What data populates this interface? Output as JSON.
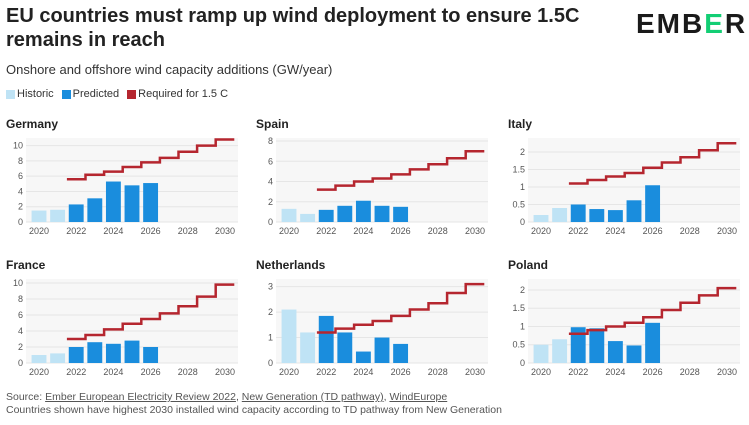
{
  "header": {
    "title": "EU countries must ramp up wind deployment to ensure 1.5C remains in reach",
    "subtitle": "Onshore and offshore wind capacity additions (GW/year)",
    "logo_text": "EMBER"
  },
  "legend": {
    "historic": "Historic",
    "predicted": "Predicted",
    "required": "Required for 1.5 C"
  },
  "colors": {
    "historic": "#bfe3f5",
    "predicted": "#1a8ddd",
    "required": "#b5262f",
    "grid": "#e6e6e6",
    "panel_bg": "#f7f7f7",
    "logo_accent": "#13ce74"
  },
  "chart_data": [
    {
      "type": "bar",
      "title": "Germany",
      "years": [
        2020,
        2021,
        2022,
        2023,
        2024,
        2025,
        2026
      ],
      "values": [
        1.5,
        1.6,
        2.3,
        3.1,
        5.3,
        4.8,
        5.1
      ],
      "status": [
        "historic",
        "historic",
        "predicted",
        "predicted",
        "predicted",
        "predicted",
        "predicted"
      ],
      "required": {
        "x": [
          2022,
          2023,
          2024,
          2025,
          2026,
          2027,
          2028,
          2029,
          2030
        ],
        "y": [
          5.6,
          6.2,
          6.6,
          7.2,
          7.8,
          8.4,
          9.2,
          10.0,
          10.8
        ]
      },
      "yticks": [
        0,
        2,
        4,
        6,
        8,
        10
      ],
      "ylim": [
        0,
        11
      ],
      "xticks": [
        2020,
        2022,
        2024,
        2026,
        2028,
        2030
      ]
    },
    {
      "type": "bar",
      "title": "Spain",
      "years": [
        2020,
        2021,
        2022,
        2023,
        2024,
        2025,
        2026
      ],
      "values": [
        1.3,
        0.8,
        1.2,
        1.6,
        2.1,
        1.6,
        1.5
      ],
      "status": [
        "historic",
        "historic",
        "predicted",
        "predicted",
        "predicted",
        "predicted",
        "predicted"
      ],
      "required": {
        "x": [
          2022,
          2023,
          2024,
          2025,
          2026,
          2027,
          2028,
          2029,
          2030
        ],
        "y": [
          3.2,
          3.6,
          4.0,
          4.3,
          4.7,
          5.2,
          5.7,
          6.3,
          7.0
        ]
      },
      "yticks": [
        0,
        2,
        4,
        6,
        8
      ],
      "ylim": [
        0,
        8.3
      ],
      "xticks": [
        2020,
        2022,
        2024,
        2026,
        2028,
        2030
      ]
    },
    {
      "type": "bar",
      "title": "Italy",
      "years": [
        2020,
        2021,
        2022,
        2023,
        2024,
        2025,
        2026
      ],
      "values": [
        0.2,
        0.4,
        0.5,
        0.37,
        0.34,
        0.62,
        1.05
      ],
      "status": [
        "historic",
        "historic",
        "predicted",
        "predicted",
        "predicted",
        "predicted",
        "predicted"
      ],
      "required": {
        "x": [
          2022,
          2023,
          2024,
          2025,
          2026,
          2027,
          2028,
          2029,
          2030
        ],
        "y": [
          1.1,
          1.2,
          1.3,
          1.4,
          1.55,
          1.7,
          1.85,
          2.05,
          2.25
        ]
      },
      "yticks": [
        0,
        0.5,
        1,
        1.5,
        2
      ],
      "ylim": [
        0,
        2.4
      ],
      "xticks": [
        2020,
        2022,
        2024,
        2026,
        2028,
        2030
      ]
    },
    {
      "type": "bar",
      "title": "France",
      "years": [
        2020,
        2021,
        2022,
        2023,
        2024,
        2025,
        2026
      ],
      "values": [
        1.0,
        1.2,
        2.0,
        2.6,
        2.4,
        2.8,
        2.0
      ],
      "status": [
        "historic",
        "historic",
        "predicted",
        "predicted",
        "predicted",
        "predicted",
        "predicted"
      ],
      "required": {
        "x": [
          2022,
          2023,
          2024,
          2025,
          2026,
          2027,
          2028,
          2029,
          2030
        ],
        "y": [
          3.0,
          3.5,
          4.2,
          4.9,
          5.5,
          6.2,
          7.1,
          8.3,
          9.8
        ]
      },
      "yticks": [
        0,
        2,
        4,
        6,
        8,
        10
      ],
      "ylim": [
        0,
        10.5
      ],
      "xticks": [
        2020,
        2022,
        2024,
        2026,
        2028,
        2030
      ]
    },
    {
      "type": "bar",
      "title": "Netherlands",
      "years": [
        2020,
        2021,
        2022,
        2023,
        2024,
        2025,
        2026
      ],
      "values": [
        2.1,
        1.2,
        1.85,
        1.2,
        0.45,
        1.0,
        0.75
      ],
      "status": [
        "historic",
        "historic",
        "predicted",
        "predicted",
        "predicted",
        "predicted",
        "predicted"
      ],
      "required": {
        "x": [
          2022,
          2023,
          2024,
          2025,
          2026,
          2027,
          2028,
          2029,
          2030
        ],
        "y": [
          1.2,
          1.35,
          1.5,
          1.65,
          1.85,
          2.1,
          2.35,
          2.75,
          3.1
        ]
      },
      "yticks": [
        0,
        1,
        2,
        3
      ],
      "ylim": [
        0,
        3.3
      ],
      "xticks": [
        2020,
        2022,
        2024,
        2026,
        2028,
        2030
      ]
    },
    {
      "type": "bar",
      "title": "Poland",
      "years": [
        2020,
        2021,
        2022,
        2023,
        2024,
        2025,
        2026
      ],
      "values": [
        0.5,
        0.65,
        0.98,
        0.95,
        0.6,
        0.48,
        1.1
      ],
      "status": [
        "historic",
        "historic",
        "predicted",
        "predicted",
        "predicted",
        "predicted",
        "predicted"
      ],
      "required": {
        "x": [
          2022,
          2023,
          2024,
          2025,
          2026,
          2027,
          2028,
          2029,
          2030
        ],
        "y": [
          0.8,
          0.9,
          1.0,
          1.1,
          1.25,
          1.45,
          1.65,
          1.85,
          2.05
        ]
      },
      "yticks": [
        0,
        0.5,
        1,
        1.5,
        2
      ],
      "ylim": [
        0,
        2.3
      ],
      "xticks": [
        2020,
        2022,
        2024,
        2026,
        2028,
        2030
      ]
    }
  ],
  "footer": {
    "source_prefix": "Source: ",
    "source_1": "Ember European Electricity Review 2022",
    "sep_1": ", ",
    "source_2": "New Generation (TD pathway)",
    "sep_2": ", ",
    "source_3": "WindEurope",
    "note": "Countries shown have highest 2030 installed wind capacity according to TD pathway from New Generation"
  }
}
